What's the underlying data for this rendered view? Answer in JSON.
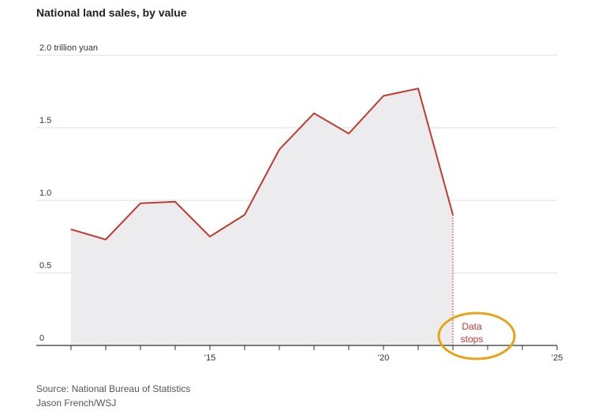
{
  "title": "National land sales, by value",
  "source": "Source: National Bureau of Statistics",
  "credit": "Jason French/WSJ",
  "chart_data": {
    "type": "area",
    "title": "National land sales, by value",
    "unit_label": "2.0 trillion yuan",
    "ylim": [
      0,
      2.0
    ],
    "xlim": [
      2010,
      2025
    ],
    "y_ticks": [
      {
        "value": 0,
        "label": "0"
      },
      {
        "value": 0.5,
        "label": "0.5"
      },
      {
        "value": 1.0,
        "label": "1.0"
      },
      {
        "value": 1.5,
        "label": "1.5"
      },
      {
        "value": 2.0,
        "label": "2.0 trillion yuan"
      }
    ],
    "x_ticks": [
      {
        "value": 2015,
        "label": "’15"
      },
      {
        "value": 2020,
        "label": "’20"
      },
      {
        "value": 2025,
        "label": "’25"
      }
    ],
    "grid": true,
    "series": [
      {
        "x": [
          2011,
          2012,
          2013,
          2014,
          2015,
          2016,
          2017,
          2018,
          2019,
          2020,
          2021,
          2022
        ],
        "values": [
          0.8,
          0.73,
          0.98,
          0.99,
          0.75,
          0.9,
          1.35,
          1.6,
          1.46,
          1.72,
          1.77,
          0.9
        ]
      }
    ],
    "annotation": {
      "label_line1": "Data",
      "label_line2": "stops",
      "x": 2022
    },
    "colors": {
      "line": "#c03a2f",
      "area": "#ececee",
      "grid": "#dddddd",
      "highlight": "#e8a316"
    }
  }
}
